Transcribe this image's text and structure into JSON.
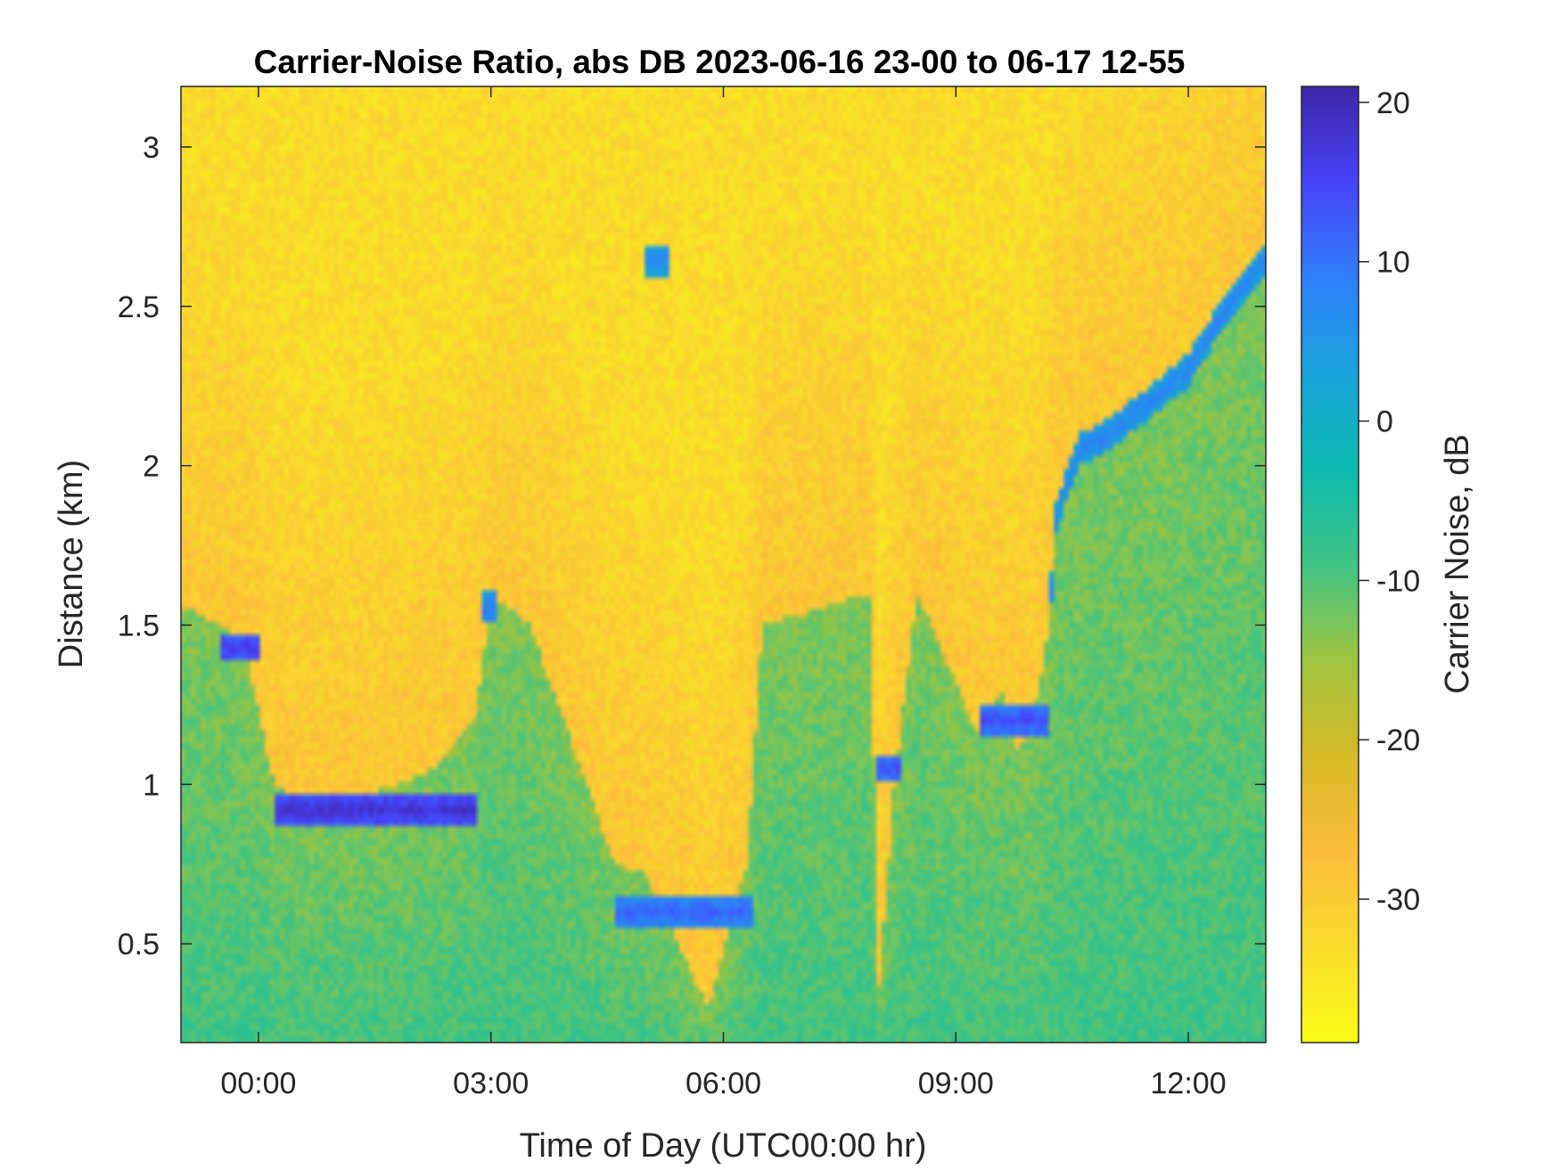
{
  "chart_data": {
    "type": "heatmap",
    "title": "Carrier-Noise Ratio, abs DB 2023-06-16 23-00 to 06-17 12-55",
    "xlabel": "Time of Day (UTC00:00 hr)",
    "ylabel": "Distance (km)",
    "colorbar_label": "Carrier Noise, dB",
    "x_unit": "hours relative to 2023-06-17 00:00 UTC",
    "xlim": [
      -1,
      13
    ],
    "ylim": [
      0.19,
      3.19
    ],
    "clim": [
      -39,
      21
    ],
    "x_ticks": [
      0,
      3,
      6,
      9,
      12
    ],
    "x_tick_labels": [
      "00:00",
      "03:00",
      "06:00",
      "09:00",
      "12:00"
    ],
    "y_ticks": [
      0.5,
      1,
      1.5,
      2,
      2.5,
      3
    ],
    "y_tick_labels": [
      "0.5",
      "1",
      "1.5",
      "2",
      "2.5",
      "3"
    ],
    "c_ticks": [
      -30,
      -20,
      -10,
      0,
      10,
      20
    ],
    "c_tick_labels": [
      "-30",
      "-20",
      "-10",
      "0",
      "10",
      "20"
    ],
    "colormap": [
      "#3e26a8",
      "#4743f8",
      "#2f7ffb",
      "#1aa4db",
      "#0cbaaf",
      "#3fc483",
      "#9fc440",
      "#d6ba26",
      "#fcbc3b",
      "#f9dc2c",
      "#f9fb15"
    ],
    "grid": false,
    "boundary_layer_top_km": [
      {
        "t": -1.0,
        "z": 1.56
      },
      {
        "t": -0.5,
        "z": 1.5
      },
      {
        "t": -0.2,
        "z": 1.45
      },
      {
        "t": 0.2,
        "z": 1.0
      },
      {
        "t": 0.6,
        "z": 0.95
      },
      {
        "t": 1.2,
        "z": 0.95
      },
      {
        "t": 1.8,
        "z": 1.0
      },
      {
        "t": 2.3,
        "z": 1.05
      },
      {
        "t": 2.8,
        "z": 1.22
      },
      {
        "t": 3.0,
        "z": 1.6
      },
      {
        "t": 3.5,
        "z": 1.5
      },
      {
        "t": 4.6,
        "z": 0.75
      },
      {
        "t": 5.0,
        "z": 0.72
      },
      {
        "t": 5.8,
        "z": 0.3
      },
      {
        "t": 6.3,
        "z": 0.75
      },
      {
        "t": 6.5,
        "z": 1.5
      },
      {
        "t": 7.9,
        "z": 1.6
      },
      {
        "t": 8.0,
        "z": 0.35
      },
      {
        "t": 8.2,
        "z": 1.0
      },
      {
        "t": 8.5,
        "z": 1.6
      },
      {
        "t": 9.3,
        "z": 1.15
      },
      {
        "t": 9.6,
        "z": 1.3
      },
      {
        "t": 9.8,
        "z": 1.1
      },
      {
        "t": 10.0,
        "z": 1.2
      },
      {
        "t": 10.2,
        "z": 1.5
      },
      {
        "t": 10.3,
        "z": 1.85
      },
      {
        "t": 10.6,
        "z": 2.05
      },
      {
        "t": 11.0,
        "z": 2.1
      },
      {
        "t": 11.5,
        "z": 2.2
      },
      {
        "t": 12.0,
        "z": 2.3
      },
      {
        "t": 12.5,
        "z": 2.5
      },
      {
        "t": 13.0,
        "z": 2.65
      }
    ],
    "cloud_returns": [
      {
        "t0": 0.2,
        "t1": 2.8,
        "z": 0.92,
        "cn_db": 18
      },
      {
        "t0": -0.5,
        "t1": 0.0,
        "z": 1.43,
        "cn_db": 16
      },
      {
        "t0": 2.9,
        "t1": 3.1,
        "z": 1.55,
        "cn_db": 10
      },
      {
        "t0": 5.0,
        "t1": 5.3,
        "z": 2.65,
        "cn_db": 8
      },
      {
        "t0": 4.6,
        "t1": 6.4,
        "z": 0.6,
        "cn_db": 12
      },
      {
        "t0": 8.0,
        "t1": 8.3,
        "z": 1.05,
        "cn_db": 14
      },
      {
        "t0": 9.3,
        "t1": 10.2,
        "z": 1.2,
        "cn_db": 14
      },
      {
        "t0": 10.2,
        "t1": 13.0,
        "z": 2.2,
        "cn_db": 8
      }
    ]
  }
}
